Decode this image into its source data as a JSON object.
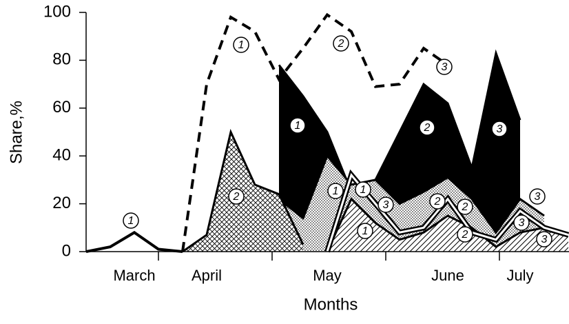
{
  "chart_data": {
    "type": "area",
    "ylabel": "Share,%",
    "xlabel": "Months",
    "categories": [
      null,
      null,
      "March",
      null,
      null,
      "April",
      null,
      null,
      null,
      null,
      "May",
      null,
      null,
      null,
      null,
      "June",
      null,
      null,
      "July",
      null,
      null
    ],
    "ylim": [
      0,
      100
    ],
    "yticks": [
      0,
      20,
      40,
      60,
      80,
      100
    ],
    "series": [
      {
        "style": "black-fill",
        "color": "#000000",
        "values": [
          null,
          null,
          null,
          null,
          null,
          null,
          null,
          null,
          78,
          65,
          50,
          25,
          30,
          50,
          70,
          62,
          35,
          83,
          55,
          null,
          null
        ]
      },
      {
        "style": "dots",
        "color": "#000000",
        "values": [
          null,
          null,
          null,
          null,
          null,
          null,
          null,
          null,
          22,
          14,
          40,
          28,
          30,
          20,
          25,
          31,
          22,
          8,
          22,
          15,
          null
        ]
      },
      {
        "style": "crosshatch",
        "color": "#000000",
        "values": [
          null,
          null,
          null,
          null,
          0,
          7,
          50,
          28,
          24,
          3,
          null,
          null,
          null,
          null,
          null,
          null,
          null,
          null,
          null,
          null,
          null
        ]
      },
      {
        "style": "hatch",
        "color": "#000000",
        "values": [
          null,
          null,
          null,
          null,
          null,
          null,
          null,
          null,
          null,
          null,
          0,
          22,
          12,
          5,
          8,
          15,
          10,
          2,
          8,
          10,
          7
        ]
      },
      {
        "style": "solid",
        "color": "#000000",
        "values": [
          0,
          2,
          8,
          1,
          0,
          null,
          null,
          null,
          null,
          null,
          null,
          null,
          null,
          null,
          null,
          null,
          null,
          null,
          null,
          null,
          null
        ]
      },
      {
        "style": "outline",
        "color": "#000000",
        "values": [
          null,
          null,
          null,
          null,
          null,
          null,
          null,
          null,
          null,
          null,
          0,
          32,
          20,
          8,
          10,
          22,
          8,
          5,
          17,
          10,
          7
        ]
      },
      {
        "style": "dashed",
        "color": "#000000",
        "values": [
          null,
          null,
          null,
          null,
          0,
          70,
          98,
          92,
          72,
          85,
          99,
          92,
          69,
          70,
          85,
          78,
          null,
          null,
          null,
          null,
          null
        ]
      }
    ],
    "annotations": [
      "1",
      "1",
      "2",
      "3",
      "1",
      "2",
      "3",
      "2",
      "1",
      "1",
      "3",
      "2",
      "2",
      "3",
      "3",
      "1",
      "2",
      "3"
    ]
  }
}
